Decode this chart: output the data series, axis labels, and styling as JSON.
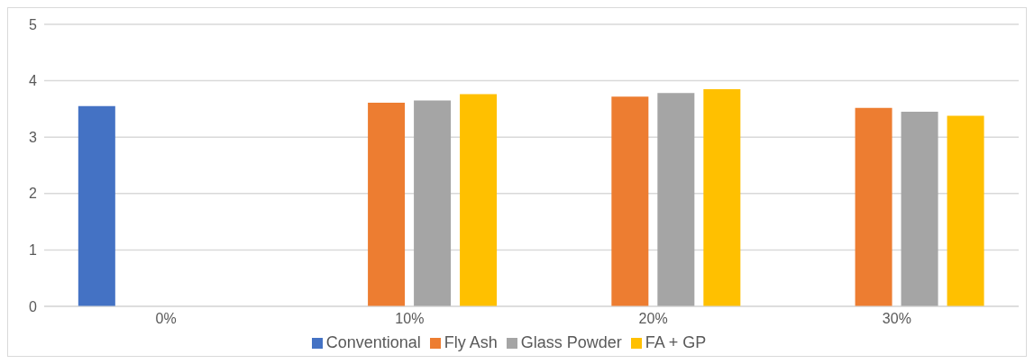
{
  "chart_data": {
    "type": "bar",
    "categories": [
      "0%",
      "10%",
      "20%",
      "30%"
    ],
    "series": [
      {
        "name": "Conventional",
        "color": "#4472c4",
        "values": [
          3.55,
          null,
          null,
          null
        ]
      },
      {
        "name": "Fly Ash",
        "color": "#ed7d31",
        "values": [
          null,
          3.61,
          3.72,
          3.52
        ]
      },
      {
        "name": "Glass Powder",
        "color": "#a5a5a5",
        "values": [
          null,
          3.65,
          3.78,
          3.45
        ]
      },
      {
        "name": "FA + GP",
        "color": "#ffc000",
        "values": [
          null,
          3.76,
          3.85,
          3.38
        ]
      }
    ],
    "ylim": [
      0,
      5
    ],
    "yticks": [
      0,
      1,
      2,
      3,
      4,
      5
    ],
    "grid": "y",
    "legend": "bottom"
  }
}
